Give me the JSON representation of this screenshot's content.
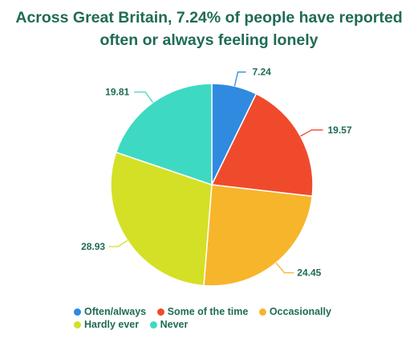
{
  "chart_data": {
    "type": "pie",
    "title_lines": [
      "Across Great Britain, 7.24% of people have reported",
      "often or always feeling lonely"
    ],
    "slices": [
      {
        "name": "Often/always",
        "value": 7.24,
        "label": "7.24",
        "color": "#2f8ae0"
      },
      {
        "name": "Some of the time",
        "value": 19.57,
        "label": "19.57",
        "color": "#f04a2c"
      },
      {
        "name": "Occasionally",
        "value": 24.45,
        "label": "24.45",
        "color": "#f7b52b"
      },
      {
        "name": "Hardly ever",
        "value": 28.93,
        "label": "28.93",
        "color": "#d4e025"
      },
      {
        "name": "Never",
        "value": 19.81,
        "label": "19.81",
        "color": "#3ed9c3"
      }
    ],
    "legend_placement": "bottom",
    "label_color": "#1f6b56"
  }
}
